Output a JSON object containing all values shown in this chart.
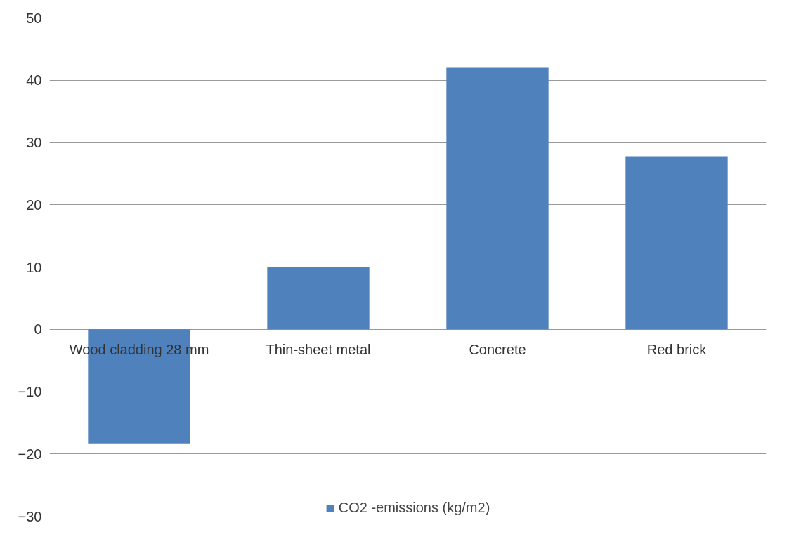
{
  "chart_data": {
    "type": "bar",
    "categories": [
      "Wood cladding 28 mm",
      "Thin-sheet metal",
      "Concrete",
      "Red brick"
    ],
    "series": [
      {
        "name": "CO2 -emissions (kg/m2)",
        "color": "#4f81bd",
        "values": [
          -18.3,
          10.0,
          42.0,
          27.8
        ]
      }
    ],
    "ylim": [
      -30,
      50
    ],
    "yticks": [
      -30,
      -20,
      -10,
      0,
      10,
      20,
      30,
      40,
      50
    ],
    "grid": "y",
    "legend": "bottom"
  }
}
